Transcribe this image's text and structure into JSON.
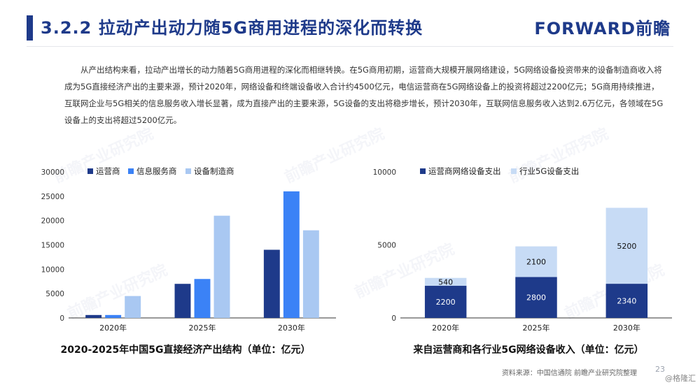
{
  "header": {
    "title": "3.2.2 拉动产出动力随5G商用进程的深化而转换",
    "brand": "FORWARD前瞻"
  },
  "intro": "从产出结构来看，拉动产出增长的动力随着5G商用进程的深化而相继转换。在5G商用初期，运营商大规模开展网络建设，5G网络设备投资带来的设备制造商收入将成为5G直接经济产出的主要来源，预计2020年，网络设备和终端设备收入合计约4500亿元，电信运营商在5G网络设备上的投资将超过2200亿元；5G商用持续推进，互联网企业与5G相关的信息服务收入增长显著，成为直接产出的主要来源，5G设备的支出将稳步增长，预计2030年，互联网信息服务收入达到2.6万亿元，各领域在5G设备上的支出将超过5200亿元。",
  "watermark": "前瞻产业研究院",
  "chart_data": [
    {
      "type": "bar",
      "title": "2020-2025年中国5G直接经济产出结构（单位：亿元）",
      "categories": [
        "2020年",
        "2025年",
        "2030年"
      ],
      "series": [
        {
          "name": "运营商",
          "values": [
            600,
            7000,
            14000
          ],
          "color": "#1e3a8a"
        },
        {
          "name": "信息服务商",
          "values": [
            600,
            8000,
            26000
          ],
          "color": "#3b82f6"
        },
        {
          "name": "设备制造商",
          "values": [
            4500,
            21000,
            18000
          ],
          "color": "#a9c8f2"
        }
      ],
      "ylim": [
        0,
        30000
      ],
      "yticks": [
        0,
        5000,
        10000,
        15000,
        20000,
        25000,
        30000
      ],
      "grid": false,
      "legend": "top"
    },
    {
      "type": "bar",
      "stacked": true,
      "title": "来自运营商和各行业5G网络设备收入（单位：亿元）",
      "categories": [
        "2020年",
        "2025年",
        "2030年"
      ],
      "series": [
        {
          "name": "运营商网络设备支出",
          "values": [
            2200,
            2800,
            2340
          ],
          "color": "#1e3a8a"
        },
        {
          "name": "行业5G设备支出",
          "values": [
            540,
            2100,
            5200
          ],
          "color": "#c7dbf5"
        }
      ],
      "ylim": [
        0,
        10000
      ],
      "yticks": [
        0,
        5000,
        10000
      ],
      "grid": false,
      "legend": "top"
    }
  ],
  "footer": {
    "source": "资料来源：中国信通院 前瞻产业研究院整理",
    "page": "23",
    "stamp": "@格隆汇"
  }
}
